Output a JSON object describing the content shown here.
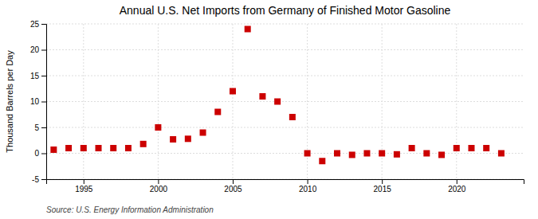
{
  "chart_data": {
    "type": "scatter",
    "title": "Annual U.S. Net Imports from Germany of Finished Motor Gasoline",
    "ylabel": "Thousand Barrels per Day",
    "source": "Source: U.S. Energy Information Administration",
    "x": [
      1993,
      1994,
      1995,
      1996,
      1997,
      1998,
      1999,
      2000,
      2001,
      2002,
      2003,
      2004,
      2005,
      2006,
      2007,
      2008,
      2009,
      2010,
      2011,
      2012,
      2013,
      2014,
      2015,
      2016,
      2017,
      2018,
      2019,
      2020,
      2021,
      2022,
      2023
    ],
    "values": [
      0.7,
      1.0,
      1.0,
      1.0,
      1.0,
      1.0,
      1.8,
      5.0,
      2.7,
      2.8,
      4.0,
      8.0,
      12.0,
      24.0,
      11.0,
      10.0,
      7.0,
      0.0,
      -1.5,
      0.0,
      -0.3,
      0.0,
      0.0,
      -0.2,
      1.0,
      0.0,
      -0.3,
      1.0,
      1.0,
      1.0,
      0.0
    ],
    "color": "#cc0000",
    "marker": "square",
    "xlim": [
      1992.5,
      2024.5
    ],
    "xticks": [
      1995,
      2000,
      2005,
      2010,
      2015,
      2020
    ],
    "ylim": [
      -5,
      25
    ],
    "yticks": [
      -5,
      0,
      5,
      10,
      15,
      20,
      25
    ],
    "grid": true
  }
}
